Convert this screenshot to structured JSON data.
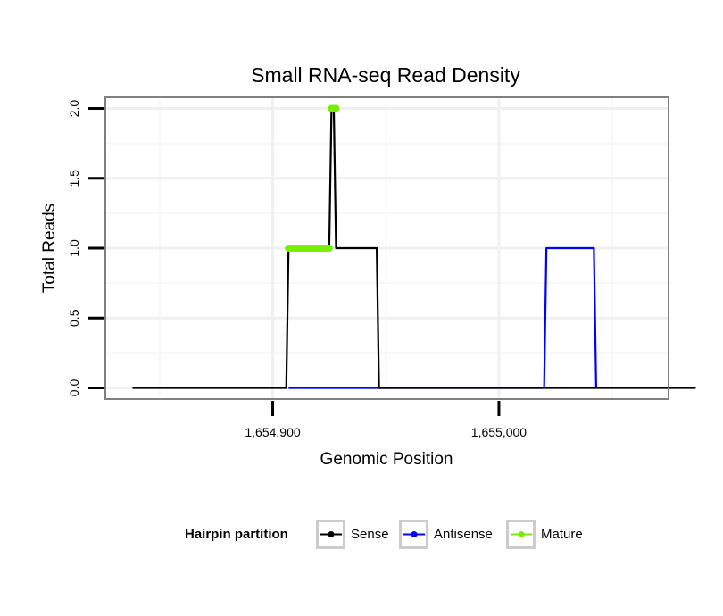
{
  "chart_data": {
    "type": "line",
    "title": "Small RNA-seq Read Density",
    "xlabel": "Genomic Position",
    "ylabel": "Total Reads",
    "xlim": [
      1654826,
      1655075
    ],
    "ylim": [
      -0.08,
      2.08
    ],
    "x_ticks": [
      1654900,
      1655000
    ],
    "x_tick_labels": [
      "1,654,900",
      "1,655,000"
    ],
    "y_ticks": [
      0,
      0.5,
      1,
      1.5,
      2
    ],
    "y_tick_labels": [
      "0.0",
      "0.5",
      "1.0",
      "1.5",
      "2.0"
    ],
    "grid": true,
    "legend_position": "bottom",
    "legend_title": "Hairpin partition",
    "series": [
      {
        "name": "Sense",
        "color": "#000000",
        "style": "line",
        "x": [
          1654838,
          1654906,
          1654907,
          1654925,
          1654926,
          1654927,
          1654928,
          1654929,
          1654946,
          1654947,
          1655087
        ],
        "y": [
          0,
          0,
          1,
          1,
          2,
          2,
          1,
          1,
          1,
          0,
          0
        ]
      },
      {
        "name": "Antisense",
        "color": "#0000ff",
        "style": "line",
        "x": [
          1654907,
          1654947,
          1655020,
          1655021,
          1655042,
          1655043
        ],
        "y": [
          0,
          0,
          0,
          1,
          1,
          0
        ]
      },
      {
        "name": "Mature",
        "color": "#77ee00",
        "style": "points",
        "x": [
          1654907,
          1654908,
          1654909,
          1654910,
          1654911,
          1654912,
          1654913,
          1654914,
          1654915,
          1654916,
          1654917,
          1654918,
          1654919,
          1654920,
          1654921,
          1654922,
          1654923,
          1654924,
          1654925,
          1654926,
          1654926.5,
          1654927,
          1654927.5,
          1654928
        ],
        "y": [
          1,
          1,
          1,
          1,
          1,
          1,
          1,
          1,
          1,
          1,
          1,
          1,
          1,
          1,
          1,
          1,
          1,
          1,
          1,
          2,
          2,
          2,
          2,
          2
        ]
      }
    ]
  }
}
